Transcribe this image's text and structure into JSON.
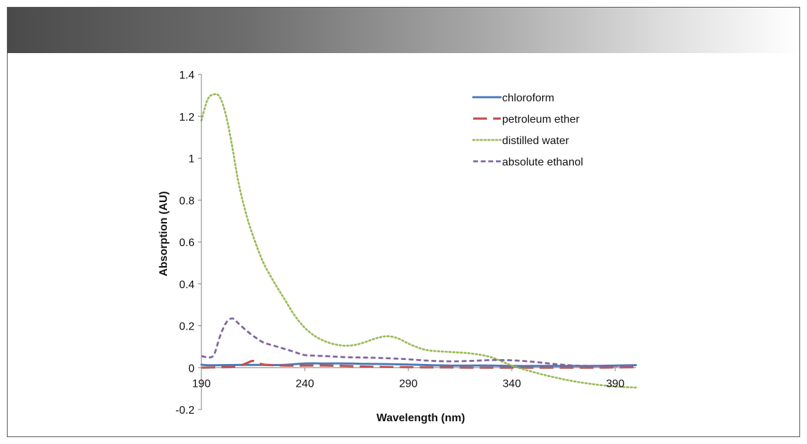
{
  "chart_data": {
    "type": "line",
    "title": "",
    "xlabel": "Wavelength (nm)",
    "ylabel": "Absorption (AU)",
    "xlim": [
      190,
      400
    ],
    "ylim": [
      -0.2,
      1.4
    ],
    "xticks": [
      190,
      240,
      290,
      340,
      390
    ],
    "yticks": [
      1.4,
      1.2,
      1,
      0.8,
      0.6,
      0.4,
      0.2,
      0,
      -0.2
    ],
    "grid": false,
    "legend_position": "top-right",
    "series": [
      {
        "name": "chloroform",
        "color": "#4a7ab9",
        "dash": "solid",
        "x": [
          190,
          192,
          200,
          210,
          220,
          230,
          240,
          250,
          260,
          270,
          280,
          290,
          300,
          310,
          320,
          330,
          340,
          350,
          360,
          370,
          380,
          390,
          400
        ],
        "y": [
          0.015,
          0.012,
          0.012,
          0.013,
          0.013,
          0.013,
          0.02,
          0.02,
          0.02,
          0.018,
          0.017,
          0.015,
          0.012,
          0.01,
          0.01,
          0.01,
          0.008,
          0.008,
          0.008,
          0.008,
          0.008,
          0.01,
          0.012
        ]
      },
      {
        "name": "petroleum ether",
        "color": "#c0504d",
        "dash": "long-dash",
        "x": [
          190,
          200,
          207,
          212,
          215,
          220,
          230,
          240,
          250,
          260,
          270,
          280,
          290,
          300,
          310,
          320,
          330,
          340,
          350,
          360,
          370,
          380,
          390,
          400
        ],
        "y": [
          0.0,
          0.002,
          0.005,
          0.022,
          0.032,
          0.015,
          0.01,
          0.01,
          0.01,
          0.008,
          0.005,
          0.003,
          0.002,
          0.001,
          0.001,
          0.0,
          0.0,
          0.0,
          0.0,
          0.0,
          0.0,
          0.0,
          0.001,
          0.002
        ]
      },
      {
        "name": "distilled water",
        "color": "#9bbb59",
        "dash": "dotted",
        "x": [
          190,
          193,
          196,
          199,
          202,
          205,
          208,
          212,
          216,
          220,
          225,
          230,
          235,
          240,
          245,
          250,
          255,
          260,
          265,
          270,
          275,
          280,
          285,
          290,
          295,
          300,
          310,
          320,
          330,
          340,
          350,
          360,
          370,
          380,
          390,
          400
        ],
        "y": [
          1.18,
          1.28,
          1.305,
          1.29,
          1.2,
          1.05,
          0.88,
          0.72,
          0.6,
          0.5,
          0.41,
          0.33,
          0.25,
          0.19,
          0.15,
          0.125,
          0.11,
          0.105,
          0.11,
          0.125,
          0.142,
          0.15,
          0.14,
          0.115,
          0.095,
          0.082,
          0.075,
          0.068,
          0.05,
          0.01,
          -0.02,
          -0.045,
          -0.065,
          -0.08,
          -0.09,
          -0.095
        ]
      },
      {
        "name": "absolute ethanol",
        "color": "#8064a2",
        "dash": "short-dash",
        "x": [
          190,
          193,
          196,
          199,
          202,
          205,
          208,
          212,
          216,
          220,
          225,
          230,
          235,
          240,
          250,
          260,
          270,
          280,
          290,
          300,
          310,
          320,
          330,
          340,
          350,
          360,
          370,
          380,
          390,
          400
        ],
        "y": [
          0.055,
          0.05,
          0.06,
          0.15,
          0.215,
          0.235,
          0.21,
          0.175,
          0.145,
          0.12,
          0.105,
          0.09,
          0.075,
          0.06,
          0.055,
          0.05,
          0.048,
          0.045,
          0.04,
          0.033,
          0.03,
          0.032,
          0.036,
          0.035,
          0.028,
          0.018,
          0.01,
          0.008,
          0.008,
          0.01
        ]
      }
    ]
  }
}
